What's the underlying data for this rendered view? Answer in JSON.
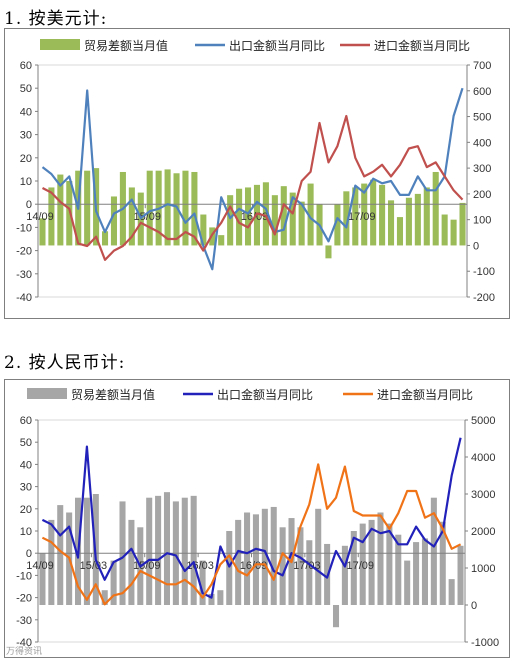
{
  "chart1_heading": "1. 按美元计:",
  "chart2_heading": "2. 按人民币计:",
  "watermark": "万得资讯",
  "chart_data": [
    {
      "type": "bar",
      "title": "",
      "legend_position": "top",
      "series": [
        {
          "name": "贸易差额当月值",
          "kind": "bar",
          "axis": "right",
          "color": "#9bbb59",
          "values": [
            105,
            225,
            275,
            250,
            290,
            290,
            300,
            55,
            190,
            285,
            225,
            205,
            290,
            290,
            295,
            280,
            290,
            285,
            120,
            70,
            40,
            195,
            220,
            225,
            235,
            245,
            195,
            230,
            205,
            170,
            240,
            160,
            -50,
            160,
            210,
            225,
            240,
            255,
            235,
            175,
            110,
            185,
            200,
            225,
            285,
            120,
            100,
            165
          ]
        },
        {
          "name": "出口金额当月同比",
          "kind": "line",
          "axis": "left",
          "color": "#4f81bd",
          "values": [
            16,
            13,
            8,
            12,
            -2,
            49,
            -3,
            -12,
            -4,
            -2,
            2,
            -6,
            -3,
            -2,
            0,
            -1,
            -8,
            -4,
            -18,
            -28,
            3,
            -6,
            -2,
            -4,
            1,
            -2,
            -12,
            -11,
            3,
            0,
            -6,
            -9,
            -16,
            -6,
            -10,
            8,
            5,
            11,
            9,
            10,
            4,
            4,
            12,
            6,
            6,
            12,
            38,
            50
          ]
        },
        {
          "name": "进口金额当月同比",
          "kind": "line",
          "axis": "left",
          "color": "#c0504d",
          "values": [
            7,
            5,
            1,
            -2,
            -17,
            -18,
            -14,
            -24,
            -20,
            -18,
            -14,
            -8,
            -10,
            -12,
            -15,
            -15,
            -12,
            -14,
            -20,
            -13,
            -8,
            -1,
            -8,
            -10,
            -4,
            -5,
            -13,
            0,
            -4,
            10,
            14,
            35,
            18,
            25,
            38,
            20,
            12,
            14,
            17,
            12,
            17,
            24,
            25,
            16,
            18,
            12,
            6,
            2
          ]
        }
      ],
      "x_tick_labels": [
        "14/09",
        "15/09",
        "16/09",
        "17/09"
      ],
      "x_tick_index": [
        0,
        12,
        24,
        36
      ],
      "y_left": {
        "min": -40,
        "max": 60,
        "step": 10,
        "ticks": [
          "60",
          "50",
          "40",
          "30",
          "20",
          "10",
          "0",
          "-10",
          "-20",
          "-30",
          "-40"
        ]
      },
      "y_right": {
        "min": -200,
        "max": 700,
        "step": 100,
        "ticks": [
          "700",
          "600",
          "500",
          "400",
          "300",
          "200",
          "100",
          "0",
          "-100",
          "-200"
        ]
      },
      "grid": false
    },
    {
      "type": "bar",
      "title": "",
      "legend_position": "top",
      "series": [
        {
          "name": "贸易差额当月值",
          "kind": "bar",
          "axis": "right",
          "color": "#a6a6a6",
          "values": [
            1400,
            2300,
            2700,
            2500,
            2900,
            2900,
            3000,
            400,
            1200,
            2800,
            2300,
            2100,
            2900,
            2950,
            3050,
            2800,
            2900,
            2950,
            1200,
            300,
            400,
            2000,
            2300,
            2500,
            2450,
            2600,
            2650,
            2100,
            2350,
            2100,
            1750,
            2600,
            1650,
            -600,
            1600,
            2000,
            2200,
            2300,
            2500,
            2200,
            1900,
            1200,
            1700,
            1800,
            2900,
            2250,
            700,
            1600
          ]
        },
        {
          "name": "出口金额当月同比",
          "kind": "line",
          "axis": "left",
          "color": "#2222bb",
          "values": [
            15,
            13,
            8,
            12,
            -2,
            48,
            -3,
            -12,
            -4,
            -2,
            2,
            -6,
            -3,
            -3,
            0,
            -1,
            -8,
            -4,
            -18,
            -20,
            3,
            -6,
            1,
            0,
            2,
            1,
            -8,
            -10,
            0,
            -2,
            -5,
            -8,
            -11,
            1,
            -6,
            7,
            5,
            11,
            9,
            10,
            4,
            4,
            12,
            6,
            3,
            10,
            35,
            52
          ]
        },
        {
          "name": "进口金额当月同比",
          "kind": "line",
          "axis": "left",
          "color": "#f07318",
          "values": [
            7,
            5,
            1,
            -2,
            -15,
            -21,
            -14,
            -23,
            -19,
            -18,
            -14,
            -8,
            -10,
            -12,
            -14,
            -14,
            -12,
            -15,
            -20,
            -14,
            -5,
            -1,
            -8,
            -10,
            -5,
            -5,
            -12,
            0,
            -4,
            12,
            22,
            40,
            20,
            25,
            39,
            19,
            17,
            17,
            17,
            11,
            18,
            28,
            28,
            16,
            18,
            11,
            2,
            4
          ]
        }
      ],
      "x_tick_labels": [
        "14/09",
        "15/03",
        "15/09",
        "16/03",
        "16/09",
        "17/03",
        "17/09"
      ],
      "x_tick_index": [
        0,
        6,
        12,
        18,
        24,
        30,
        36
      ],
      "y_left": {
        "min": -40,
        "max": 60,
        "step": 10,
        "ticks": [
          "60",
          "50",
          "40",
          "30",
          "20",
          "10",
          "0",
          "-10",
          "-20",
          "-30",
          "-40"
        ]
      },
      "y_right": {
        "min": -1000,
        "max": 5000,
        "step": 1000,
        "ticks": [
          "5000",
          "4000",
          "3000",
          "2000",
          "1000",
          "0",
          "-1000"
        ]
      },
      "grid": false
    }
  ]
}
